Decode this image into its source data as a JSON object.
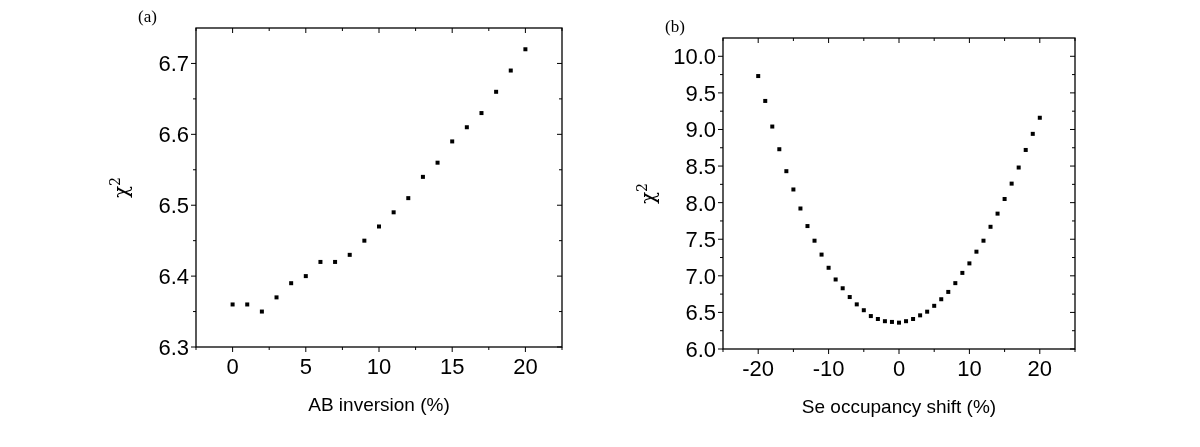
{
  "chart_data": [
    {
      "type": "scatter",
      "annotations": [
        "(a)"
      ],
      "xlabel": "AB inversion (%)",
      "ylabel": "χ$^{2}$",
      "marker": "square",
      "grid": false,
      "xlim": [
        -2.5,
        22.5
      ],
      "ylim": [
        6.3,
        6.75
      ],
      "xticks": [
        {
          "value": -2.5,
          "label": null
        },
        0,
        {
          "value": 2.5,
          "label": null
        },
        5,
        {
          "value": 7.5,
          "label": null
        },
        10,
        {
          "value": 12.5,
          "label": null
        },
        15,
        {
          "value": 17.5,
          "label": null
        },
        20,
        {
          "value": 22.5,
          "label": null
        }
      ],
      "yticks": [
        6.3,
        {
          "value": 6.35,
          "label": null
        },
        6.4,
        {
          "value": 6.45,
          "label": null
        },
        6.5,
        {
          "value": 6.55,
          "label": null
        },
        6.6,
        {
          "value": 6.65,
          "label": null
        },
        6.7
      ],
      "series": [
        {
          "color": "#000000",
          "x": [
            0,
            1,
            2,
            3,
            4,
            5,
            6,
            7,
            8,
            9,
            10,
            11,
            12,
            13,
            14,
            15,
            16,
            17,
            18,
            19,
            20
          ],
          "values": [
            6.36,
            6.36,
            6.35,
            6.37,
            6.39,
            6.4,
            6.42,
            6.42,
            6.43,
            6.45,
            6.47,
            6.49,
            6.51,
            6.54,
            6.56,
            6.59,
            6.61,
            6.63,
            6.66,
            6.69,
            6.72
          ]
        }
      ]
    },
    {
      "type": "scatter",
      "annotations": [
        "(b)"
      ],
      "xlabel": "Se occupancy shift (%)",
      "ylabel": "χ$^{2}$",
      "marker": "square",
      "grid": false,
      "xlim": [
        -25,
        25
      ],
      "ylim": [
        6.0,
        10.25
      ],
      "xticks": [
        {
          "value": -25,
          "label": null
        },
        -20,
        {
          "value": -15,
          "label": null
        },
        -10,
        {
          "value": -5,
          "label": null
        },
        0,
        {
          "value": 5,
          "label": null
        },
        10,
        {
          "value": 15,
          "label": null
        },
        20,
        {
          "value": 25,
          "label": null
        }
      ],
      "yticks": [
        {
          "value": 6.0,
          "label": "6.0"
        },
        {
          "value": 6.25,
          "label": null
        },
        6.5,
        {
          "value": 6.75,
          "label": null
        },
        {
          "value": 7.0,
          "label": "7.0"
        },
        {
          "value": 7.25,
          "label": null
        },
        7.5,
        {
          "value": 7.75,
          "label": null
        },
        {
          "value": 8.0,
          "label": "8.0"
        },
        {
          "value": 8.25,
          "label": null
        },
        8.5,
        {
          "value": 8.75,
          "label": null
        },
        {
          "value": 9.0,
          "label": "9.0"
        },
        {
          "value": 9.25,
          "label": null
        },
        9.5,
        {
          "value": 9.75,
          "label": null
        },
        {
          "value": 10.0,
          "label": "10.0"
        }
      ],
      "series": [
        {
          "color": "#000000",
          "x": [
            -20,
            -19,
            -18,
            -17,
            -16,
            -15,
            -14,
            -13,
            -12,
            -11,
            -10,
            -9,
            -8,
            -7,
            -6,
            -5,
            -4,
            -3,
            -2,
            -1,
            0,
            1,
            2,
            3,
            4,
            5,
            6,
            7,
            8,
            9,
            10,
            11,
            12,
            13,
            14,
            15,
            16,
            17,
            18,
            19,
            20
          ],
          "values": [
            9.73,
            9.39,
            9.04,
            8.73,
            8.43,
            8.18,
            7.92,
            7.68,
            7.48,
            7.29,
            7.11,
            6.95,
            6.83,
            6.71,
            6.61,
            6.53,
            6.45,
            6.41,
            6.38,
            6.37,
            6.36,
            6.38,
            6.41,
            6.46,
            6.51,
            6.59,
            6.68,
            6.78,
            6.9,
            7.04,
            7.17,
            7.33,
            7.48,
            7.67,
            7.85,
            8.05,
            8.26,
            8.48,
            8.72,
            8.94,
            9.16
          ]
        }
      ]
    }
  ]
}
